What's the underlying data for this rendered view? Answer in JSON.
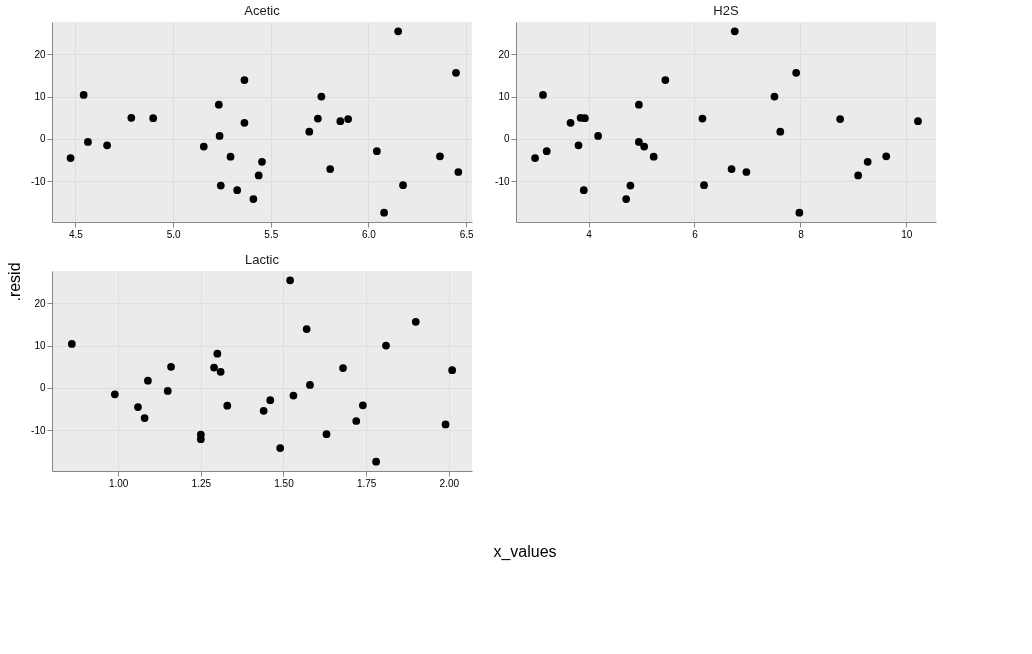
{
  "chart_data": [
    {
      "type": "scatter",
      "title": "Acetic",
      "xlabel": "x_values",
      "ylabel": ".resid",
      "color": "#000000",
      "marker": "circle",
      "grid": true,
      "x": [
        4.475,
        4.542,
        4.564,
        4.662,
        4.786,
        4.898,
        5.157,
        5.234,
        5.238,
        5.244,
        5.294,
        5.328,
        5.365,
        5.365,
        5.411,
        5.438,
        5.455,
        5.697,
        5.741,
        5.759,
        5.804,
        5.856,
        5.896,
        6.043,
        6.08,
        6.152,
        6.177,
        6.366,
        6.448,
        6.46
      ],
      "values": [
        -4.5,
        10.4,
        -0.7,
        -1.5,
        5.0,
        4.9,
        -1.8,
        8.1,
        0.7,
        -11.0,
        -4.2,
        -12.1,
        13.9,
        3.8,
        -14.2,
        -8.6,
        -5.4,
        1.7,
        4.8,
        10.0,
        -7.1,
        4.2,
        4.7,
        -2.9,
        -17.4,
        25.4,
        -10.9,
        -4.1,
        15.6,
        -7.8
      ],
      "xlim": [
        4.38,
        6.53
      ],
      "xticks": [
        4.5,
        {
          "value": 5,
          "label": "5.0"
        },
        5.5,
        {
          "value": 6,
          "label": "6.0"
        },
        6.5
      ],
      "ylim": [
        -19.6,
        27.6
      ],
      "yticks": [
        -10,
        0,
        10,
        20
      ]
    },
    {
      "type": "scatter",
      "title": "H2S",
      "color": "#000000",
      "marker": "circle",
      "grid": true,
      "x": [
        2.99,
        3.14,
        4.95,
        3.81,
        3.85,
        3.93,
        5.05,
        4.95,
        4.18,
        4.79,
        5.23,
        3.91,
        5.45,
        3.66,
        4.71,
        9.09,
        9.27,
        7.62,
        6.15,
        7.51,
        6.7,
        10.22,
        8.75,
        3.21,
        7.98,
        6.76,
        6.18,
        9.62,
        7.92,
        6.98
      ],
      "values": [
        -4.5,
        10.4,
        -0.7,
        -1.5,
        5.0,
        4.9,
        -1.8,
        8.1,
        0.7,
        -11.0,
        -4.2,
        -12.1,
        13.9,
        3.8,
        -14.2,
        -8.6,
        -5.4,
        1.7,
        4.8,
        10.0,
        -7.1,
        4.2,
        4.7,
        -2.9,
        -17.4,
        25.4,
        -10.9,
        -4.1,
        15.6,
        -7.8
      ],
      "xlim": [
        2.63,
        10.56
      ],
      "xticks": [
        4,
        6,
        8,
        10
      ],
      "ylim": [
        -19.6,
        27.6
      ],
      "yticks": [
        -10,
        0,
        10,
        20
      ]
    },
    {
      "type": "scatter",
      "title": "Lactic",
      "color": "#000000",
      "marker": "circle",
      "grid": true,
      "x": [
        0.86,
        0.99,
        1.06,
        1.08,
        1.09,
        1.15,
        1.16,
        1.25,
        1.25,
        1.29,
        1.3,
        1.31,
        1.33,
        1.44,
        1.46,
        1.49,
        1.52,
        1.53,
        1.57,
        1.58,
        1.63,
        1.68,
        1.72,
        1.74,
        1.78,
        1.81,
        1.9,
        1.99,
        2.01
      ],
      "values": [
        10.4,
        -1.5,
        -4.5,
        -7.1,
        1.7,
        -0.7,
        5.0,
        -11.0,
        -12.1,
        4.8,
        8.1,
        3.8,
        -4.2,
        -5.4,
        -2.9,
        -14.2,
        25.4,
        -1.8,
        13.9,
        0.7,
        -10.9,
        4.7,
        -7.8,
        -4.1,
        -17.4,
        10.0,
        15.6,
        -8.6,
        4.2
      ],
      "xlim": [
        0.8,
        2.07
      ],
      "xticks": [
        {
          "value": 1,
          "label": "1.00"
        },
        1.25,
        {
          "value": 1.5,
          "label": "1.50"
        },
        1.75,
        {
          "value": 2,
          "label": "2.00"
        }
      ],
      "ylim": [
        -19.6,
        27.6
      ],
      "yticks": [
        -10,
        0,
        10,
        20
      ]
    }
  ]
}
